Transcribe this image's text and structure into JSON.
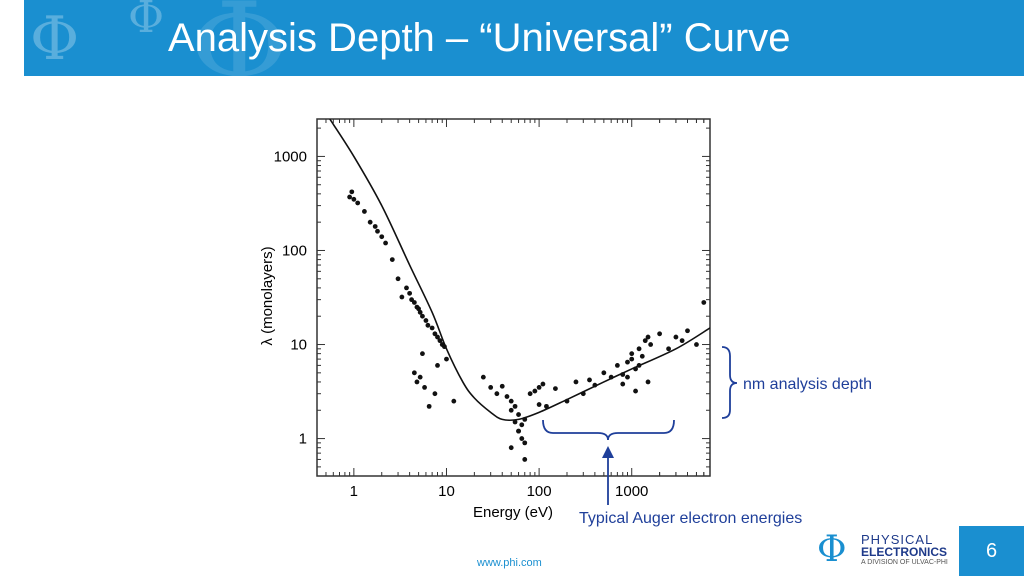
{
  "slide": {
    "title": "Analysis Depth – “Universal” Curve",
    "footer_url": "www.phi.com",
    "page_number": "6",
    "logo": {
      "line1": "PHYSICAL",
      "line2": "ELECTRONICS",
      "line3": "A DIVISION OF ULVAC-PHI",
      "icon": "phi-icon"
    },
    "colors": {
      "header": "#1a8fd0",
      "annotation": "#1f3f9a"
    }
  },
  "annotations": {
    "depth": "nm analysis depth",
    "auger": "Typical Auger electron energies"
  },
  "chart_data": {
    "type": "scatter",
    "xscale": "log",
    "yscale": "log",
    "xlabel": "Energy (eV)",
    "ylabel": "λ (monolayers)",
    "xlim": [
      0.4,
      7000
    ],
    "ylim": [
      0.4,
      2500
    ],
    "x_ticks": [
      1,
      10,
      100,
      1000
    ],
    "x_tick_labels": [
      "1",
      "10",
      "100",
      "1000"
    ],
    "y_ticks": [
      1,
      10,
      100,
      1000
    ],
    "y_tick_labels": [
      "1",
      "10",
      "100",
      "1000"
    ],
    "fit_curve": {
      "x": [
        0.55,
        1,
        2,
        4,
        7,
        10,
        15,
        20,
        30,
        40,
        60,
        100,
        200,
        500,
        1000,
        3000,
        7000
      ],
      "y": [
        2500,
        1000,
        300,
        70,
        22,
        9,
        4,
        2.7,
        1.9,
        1.6,
        1.6,
        1.9,
        2.6,
        4,
        5.5,
        9,
        15
      ]
    },
    "points": {
      "x": [
        0.9,
        0.95,
        1.0,
        1.1,
        1.3,
        1.5,
        1.7,
        1.8,
        2.0,
        2.2,
        2.6,
        3.0,
        3.3,
        3.7,
        4.0,
        4.2,
        4.5,
        4.8,
        5.0,
        5.2,
        5.5,
        6.0,
        6.3,
        7.0,
        7.5,
        8.0,
        8.5,
        9.0,
        9.5,
        4.5,
        5.2,
        4.8,
        5.8,
        7.5,
        6.5,
        5.5,
        8.0,
        10.0,
        12.0,
        25,
        30,
        35,
        40,
        45,
        50,
        50,
        55,
        60,
        60,
        65,
        70,
        70,
        80,
        90,
        100,
        100,
        110,
        120,
        150,
        200,
        250,
        300,
        350,
        400,
        500,
        600,
        700,
        800,
        900,
        1000,
        1000,
        1100,
        1200,
        1300,
        1400,
        1500,
        1600,
        2000,
        2500,
        3000,
        3500,
        4000,
        5000,
        6000,
        1200,
        1500,
        800,
        1100,
        900,
        60,
        70,
        55,
        65,
        50
      ],
      "y": [
        370,
        420,
        350,
        320,
        260,
        200,
        180,
        160,
        140,
        120,
        80,
        50,
        32,
        40,
        35,
        30,
        28,
        25,
        24,
        22,
        20,
        18,
        16,
        15,
        13,
        12,
        11,
        10,
        9.5,
        5,
        4.5,
        4,
        3.5,
        3,
        2.2,
        8,
        6,
        7,
        2.5,
        4.5,
        3.5,
        3,
        3.6,
        2.8,
        2.5,
        2,
        1.5,
        1.8,
        1.2,
        1.0,
        0.9,
        0.6,
        3,
        3.2,
        3.5,
        2.3,
        3.8,
        2.2,
        3.4,
        2.5,
        4,
        3,
        4.2,
        3.7,
        5,
        4.5,
        6,
        4.8,
        6.5,
        7,
        8,
        5.5,
        9,
        7.5,
        11,
        12,
        10,
        13,
        9,
        12,
        11,
        14,
        10,
        28,
        6,
        4,
        3.8,
        3.2,
        4.5,
        1.2,
        1.6,
        2.2,
        1.4,
        0.8
      ]
    }
  }
}
